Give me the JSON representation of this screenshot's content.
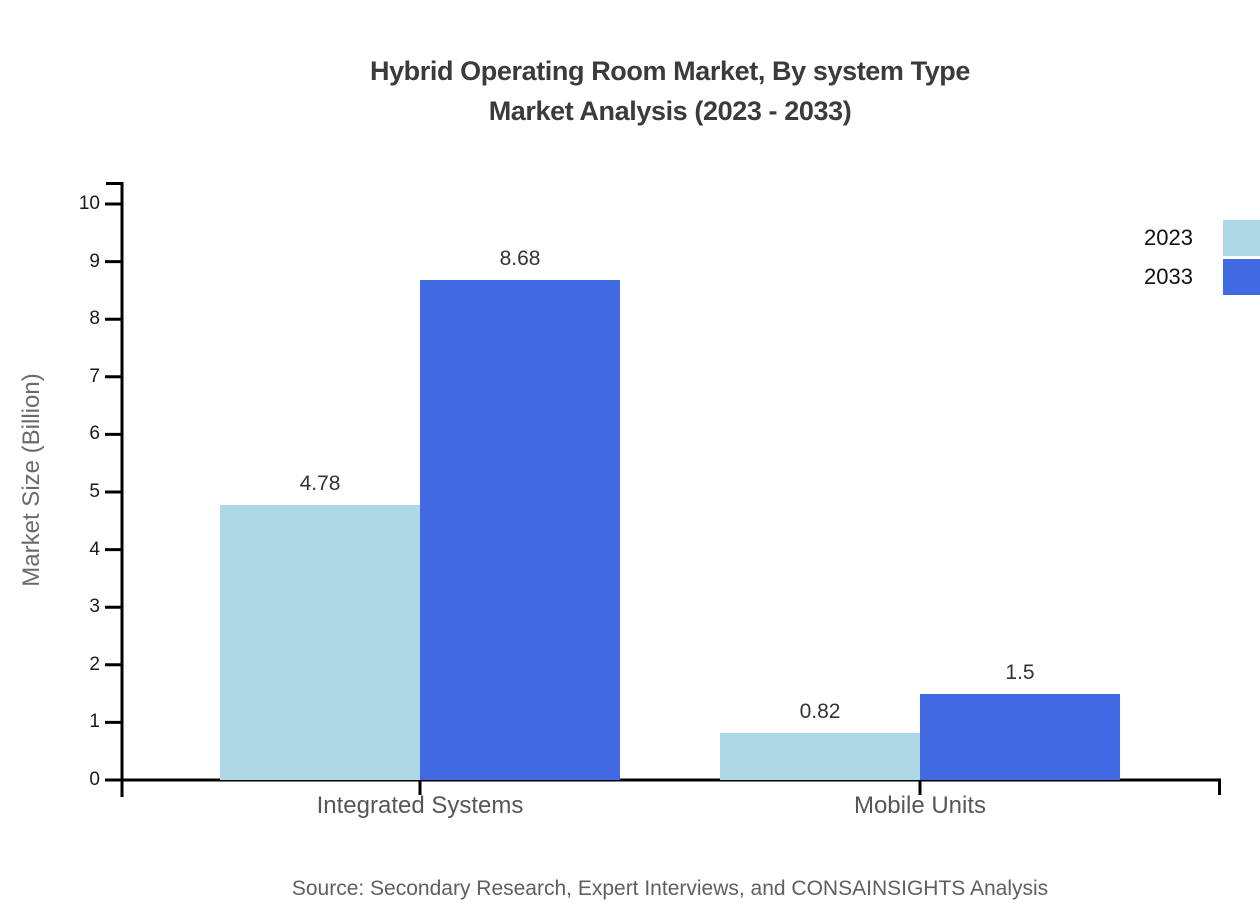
{
  "chart_data": {
    "type": "bar",
    "title": "Hybrid Operating Room Market, By system Type Market Analysis (2023 - 2033)",
    "title_lines": [
      "Hybrid Operating Room Market, By system Type",
      "Market Analysis (2023 - 2033)"
    ],
    "categories": [
      "Integrated Systems",
      "Mobile Units"
    ],
    "series": [
      {
        "name": "2023",
        "color": "#ADD8E6",
        "values": [
          4.78,
          0.82
        ],
        "labels": [
          "4.78",
          "0.82"
        ]
      },
      {
        "name": "2033",
        "color": "#4169E1",
        "values": [
          8.68,
          1.5
        ],
        "labels": [
          "8.68",
          "1.5"
        ]
      }
    ],
    "xlabel": "",
    "ylabel": "Market Size (Billion)",
    "ylim": [
      0,
      10
    ],
    "yticks": [
      0,
      1,
      2,
      3,
      4,
      5,
      6,
      7,
      8,
      9,
      10
    ],
    "grid": false,
    "legend_position": "top-right",
    "axis_color": "#000000",
    "value_label_color": "#333333",
    "source": "Source: Secondary Research, Expert Interviews, and CONSAINSIGHTS Analysis"
  }
}
